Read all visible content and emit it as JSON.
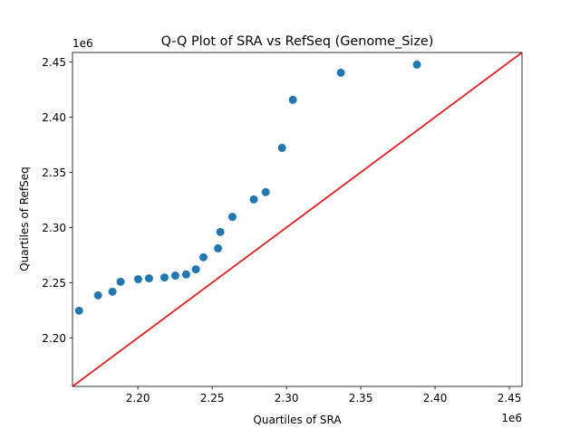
{
  "chart_data": {
    "type": "scatter",
    "title": "Q-Q Plot of SRA vs RefSeq (Genome_Size)",
    "xlabel": "Quartiles of SRA",
    "ylabel": "Quartiles of RefSeq",
    "x_offset_label": "1e6",
    "y_offset_label": "1e6",
    "xlim": [
      2.156,
      2.4585
    ],
    "ylim": [
      2.156,
      2.4585
    ],
    "xticks": [
      "2.20",
      "2.25",
      "2.30",
      "2.35",
      "2.40",
      "2.45"
    ],
    "yticks": [
      "2.20",
      "2.25",
      "2.30",
      "2.35",
      "2.40",
      "2.45"
    ],
    "grid": false,
    "point_color": "#1f77b4",
    "line_color": "#ff0000",
    "reference_line": "y = x",
    "points": [
      {
        "x": 2.1604,
        "y": 2.2246
      },
      {
        "x": 2.1732,
        "y": 2.2385
      },
      {
        "x": 2.1829,
        "y": 2.2418
      },
      {
        "x": 2.1884,
        "y": 2.2508
      },
      {
        "x": 2.2002,
        "y": 2.2531
      },
      {
        "x": 2.2075,
        "y": 2.2539
      },
      {
        "x": 2.2179,
        "y": 2.2547
      },
      {
        "x": 2.2252,
        "y": 2.2564
      },
      {
        "x": 2.2325,
        "y": 2.2574
      },
      {
        "x": 2.239,
        "y": 2.2621
      },
      {
        "x": 2.2441,
        "y": 2.273
      },
      {
        "x": 2.2539,
        "y": 2.2811
      },
      {
        "x": 2.2555,
        "y": 2.2959
      },
      {
        "x": 2.2636,
        "y": 2.3096
      },
      {
        "x": 2.278,
        "y": 2.3254
      },
      {
        "x": 2.286,
        "y": 2.332
      },
      {
        "x": 2.297,
        "y": 2.3721
      },
      {
        "x": 2.3043,
        "y": 2.4156
      },
      {
        "x": 2.3366,
        "y": 2.4402
      },
      {
        "x": 2.3878,
        "y": 2.4475
      }
    ]
  }
}
